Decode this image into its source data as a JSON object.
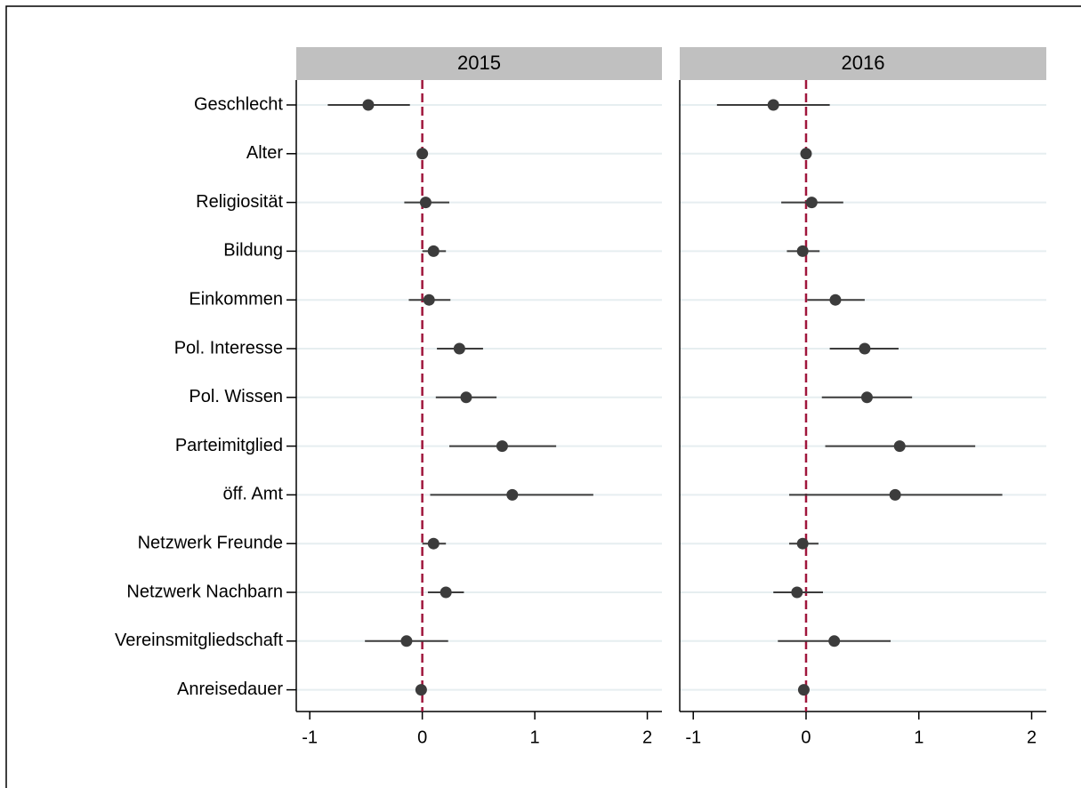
{
  "chart_data": {
    "type": "coefplot",
    "categories": [
      "Geschlecht",
      "Alter",
      "Religiosität",
      "Bildung",
      "Einkommen",
      "Pol. Interesse",
      "Pol. Wissen",
      "Parteimitglied",
      "öff. Amt",
      "Netzwerk Freunde",
      "Netzwerk Nachbarn",
      "Vereinsmitgliedschaft",
      "Anreisedauer"
    ],
    "panels": [
      {
        "title": "2015",
        "values": [
          -0.48,
          0,
          0.03,
          0.1,
          0.06,
          0.33,
          0.39,
          0.71,
          0.8,
          0.1,
          0.21,
          -0.14,
          -0.01
        ],
        "lower": [
          -0.84,
          0,
          -0.16,
          0.0,
          -0.12,
          0.13,
          0.12,
          0.24,
          0.07,
          0.0,
          0.05,
          -0.51,
          -0.01
        ],
        "upper": [
          -0.11,
          0,
          0.24,
          0.21,
          0.25,
          0.54,
          0.66,
          1.19,
          1.52,
          0.21,
          0.37,
          0.23,
          -0.01
        ]
      },
      {
        "title": "2016",
        "values": [
          -0.29,
          0,
          0.05,
          -0.03,
          0.26,
          0.52,
          0.54,
          0.83,
          0.79,
          -0.03,
          -0.08,
          0.25,
          -0.02
        ],
        "lower": [
          -0.79,
          0,
          -0.22,
          -0.17,
          0.01,
          0.21,
          0.14,
          0.17,
          -0.15,
          -0.15,
          -0.29,
          -0.25,
          -0.02
        ],
        "upper": [
          0.21,
          0,
          0.33,
          0.12,
          0.52,
          0.82,
          0.94,
          1.5,
          1.74,
          0.11,
          0.15,
          0.75,
          -0.02
        ]
      }
    ],
    "xlim": [
      -1.12,
      2.13
    ],
    "xticks": [
      -1,
      0,
      1,
      2
    ],
    "reference_line": 0,
    "reference_color": "#a0163c",
    "color": "#3c3c3c",
    "grid": true
  }
}
